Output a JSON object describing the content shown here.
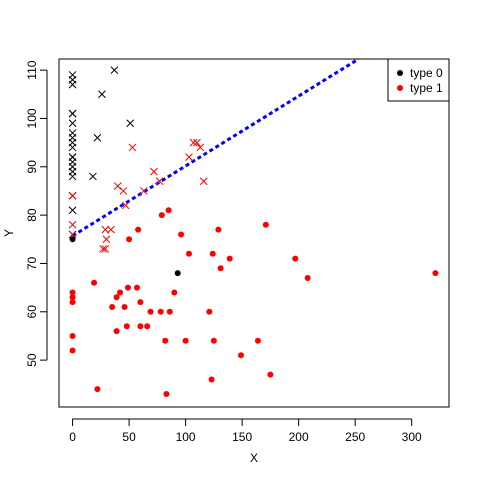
{
  "chart_data": {
    "type": "scatter",
    "xlabel": "X",
    "ylabel": "Y",
    "xlim": [
      -12,
      333
    ],
    "ylim": [
      40.3,
      112.3
    ],
    "xticks": [
      0,
      50,
      100,
      150,
      200,
      250,
      300
    ],
    "yticks": [
      50,
      60,
      70,
      80,
      90,
      100,
      110
    ],
    "legend_position": "top-right",
    "legend": [
      {
        "label": "type 0",
        "color": "#000000",
        "symbol": "dot"
      },
      {
        "label": "type 1",
        "color": "#ff0000",
        "symbol": "dot"
      }
    ],
    "series": [
      {
        "legend_label": "type 0",
        "color": "#000000",
        "symbol": "cross",
        "points": [
          [
            0,
            109
          ],
          [
            0,
            108
          ],
          [
            0,
            107
          ],
          [
            0,
            101
          ],
          [
            0,
            101
          ],
          [
            0,
            99
          ],
          [
            0,
            97
          ],
          [
            0,
            96
          ],
          [
            0,
            95
          ],
          [
            0,
            94
          ],
          [
            0,
            92
          ],
          [
            0,
            92
          ],
          [
            0,
            91
          ],
          [
            0,
            90
          ],
          [
            0,
            89
          ],
          [
            0,
            88
          ],
          [
            0,
            84
          ],
          [
            0,
            81
          ],
          [
            0,
            76
          ],
          [
            18,
            88
          ],
          [
            22,
            96
          ],
          [
            26,
            105
          ],
          [
            37,
            110
          ],
          [
            51,
            99
          ]
        ]
      },
      {
        "legend_label": "type 1",
        "color": "#ff0000",
        "symbol": "cross",
        "points": [
          [
            0,
            84
          ],
          [
            0,
            78
          ],
          [
            0,
            76
          ],
          [
            27,
            73
          ],
          [
            29,
            73
          ],
          [
            29,
            77
          ],
          [
            30,
            75
          ],
          [
            34,
            77
          ],
          [
            40,
            86
          ],
          [
            45,
            85
          ],
          [
            47,
            82
          ],
          [
            53,
            94
          ],
          [
            63,
            85
          ],
          [
            72,
            89
          ],
          [
            77,
            87
          ],
          [
            103,
            92
          ],
          [
            107,
            95
          ],
          [
            110,
            95
          ],
          [
            113,
            94
          ],
          [
            116,
            87
          ]
        ]
      },
      {
        "legend_label": "type 0",
        "color": "#000000",
        "symbol": "dot",
        "points": [
          [
            0,
            75
          ],
          [
            93,
            68
          ]
        ]
      },
      {
        "legend_label": "type 1",
        "color": "#ff0000",
        "symbol": "dot",
        "points": [
          [
            0,
            64
          ],
          [
            0,
            63
          ],
          [
            0,
            62
          ],
          [
            0,
            55
          ],
          [
            0,
            52
          ],
          [
            19,
            66
          ],
          [
            22,
            44
          ],
          [
            35,
            61
          ],
          [
            39,
            63
          ],
          [
            39,
            56
          ],
          [
            42,
            64
          ],
          [
            46,
            61
          ],
          [
            48,
            57
          ],
          [
            49,
            65
          ],
          [
            50,
            75
          ],
          [
            57,
            65
          ],
          [
            58,
            77
          ],
          [
            60,
            62
          ],
          [
            60,
            57
          ],
          [
            66,
            57
          ],
          [
            69,
            60
          ],
          [
            78,
            60
          ],
          [
            79,
            80
          ],
          [
            82,
            54
          ],
          [
            83,
            43
          ],
          [
            85,
            81
          ],
          [
            86,
            60
          ],
          [
            90,
            64
          ],
          [
            96,
            76
          ],
          [
            100,
            54
          ],
          [
            103,
            72
          ],
          [
            121,
            60
          ],
          [
            123,
            46
          ],
          [
            124,
            72
          ],
          [
            125,
            54
          ],
          [
            129,
            77
          ],
          [
            131,
            69
          ],
          [
            139,
            71
          ],
          [
            149,
            51
          ],
          [
            164,
            54
          ],
          [
            171,
            78
          ],
          [
            175,
            47
          ],
          [
            197,
            71
          ],
          [
            208,
            67
          ],
          [
            321,
            68
          ]
        ]
      }
    ],
    "reference_line": {
      "style": "dashed",
      "color": "#0000ff",
      "x": [
        0,
        253
      ],
      "y": [
        75.7,
        112.3
      ]
    }
  }
}
